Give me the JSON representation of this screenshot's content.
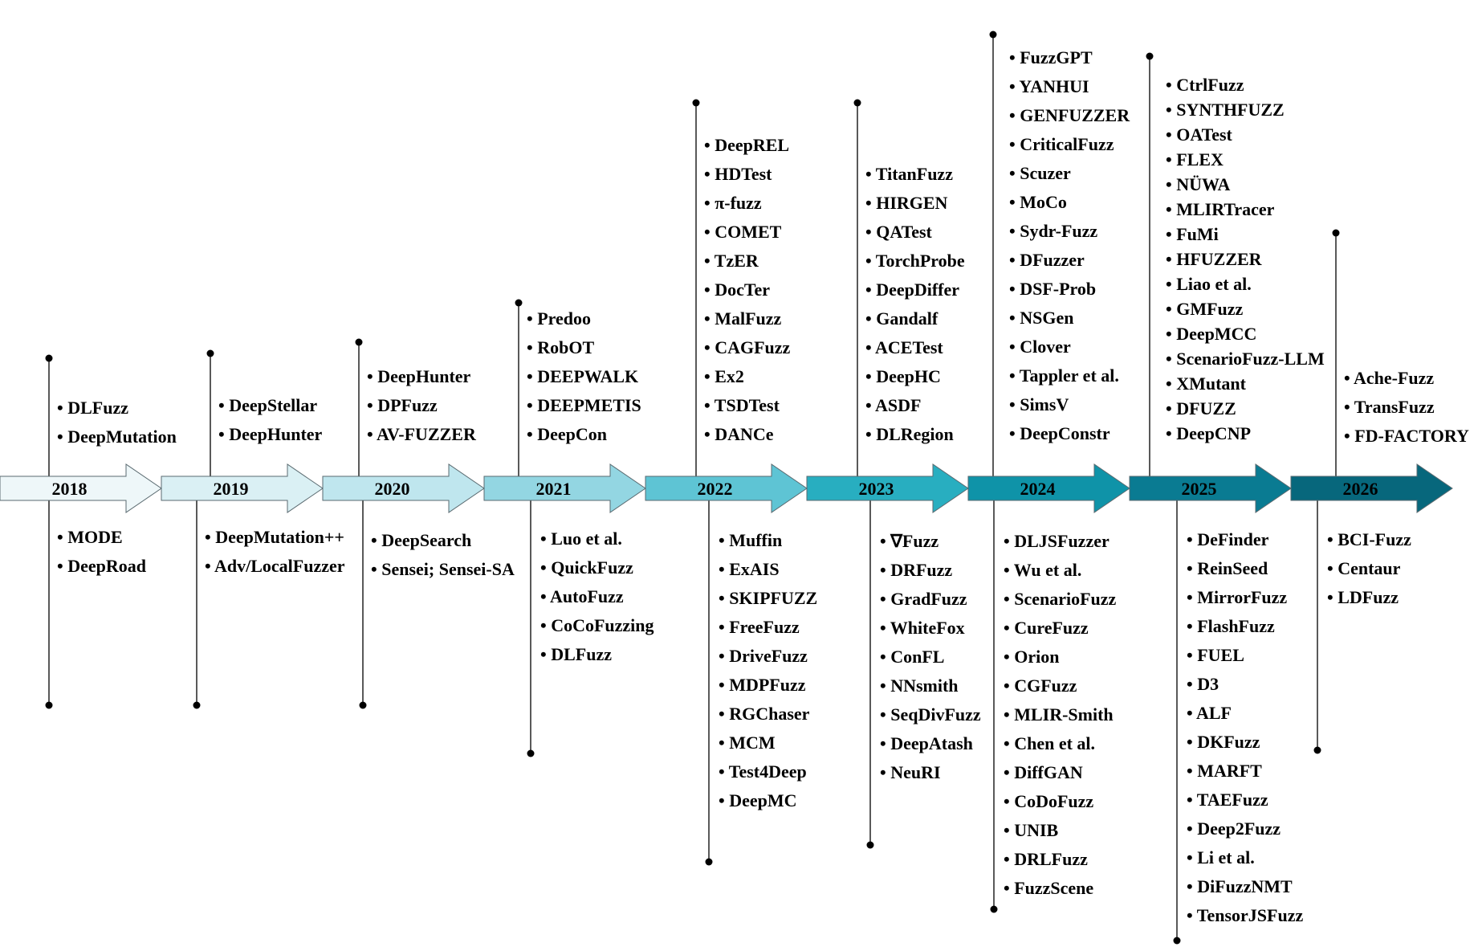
{
  "years": [
    {
      "year": "2018",
      "color": "#eef7f9",
      "top": [
        "DLFuzz",
        "DeepMutation"
      ],
      "bottom": [
        "MODE",
        "DeepRoad"
      ]
    },
    {
      "year": "2019",
      "color": "#daf0f4",
      "top": [
        "DeepStellar",
        "DeepHunter"
      ],
      "bottom": [
        "DeepMutation++",
        "Adv/LocalFuzzer"
      ]
    },
    {
      "year": "2020",
      "color": "#bfe6ee",
      "top": [
        "DeepHunter",
        "DPFuzz",
        "AV-FUZZER"
      ],
      "bottom": [
        "DeepSearch",
        "Sensei; Sensei-SA"
      ]
    },
    {
      "year": "2021",
      "color": "#93d6e2",
      "top": [
        "Predoo",
        "RobOT",
        "DEEPWALK",
        "DEEPMETIS",
        "DeepCon"
      ],
      "bottom": [
        "Luo et al.",
        "QuickFuzz",
        "AutoFuzz",
        "CoCoFuzzing",
        "DLFuzz"
      ]
    },
    {
      "year": "2022",
      "color": "#5ec4d4",
      "top": [
        "DeepREL",
        "HDTest",
        "π-fuzz",
        "COMET",
        "TzER",
        "DocTer",
        "MalFuzz",
        "CAGFuzz",
        "Ex2",
        "TSDTest",
        "DANCe"
      ],
      "bottom": [
        "Muffin",
        "ExAIS",
        "SKIPFUZZ",
        "FreeFuzz",
        "DriveFuzz",
        "MDPFuzz",
        "RGChaser",
        "MCM",
        "Test4Deep",
        "DeepMC"
      ]
    },
    {
      "year": "2023",
      "color": "#28aec0",
      "top": [
        "TitanFuzz",
        "HIRGEN",
        "QATest",
        "TorchProbe",
        "DeepDiffer",
        "Gandalf",
        "ACETest",
        "DeepHC",
        "ASDF",
        "DLRegion"
      ],
      "bottom": [
        "∇Fuzz",
        "DRFuzz",
        "GradFuzz",
        "WhiteFox",
        "ConFL",
        "NNsmith",
        "SeqDivFuzz",
        "DeepAtash",
        "NeuRI"
      ]
    },
    {
      "year": "2024",
      "color": "#0f93a8",
      "top": [
        "FuzzGPT",
        "YANHUI",
        "GENFUZZER",
        "CriticalFuzz",
        "Scuzer",
        "MoCo",
        "Sydr-Fuzz",
        "DFuzzer",
        "DSF-Prob",
        "NSGen",
        "Clover",
        "Tappler et al.",
        "SimsV",
        "DeepConstr"
      ],
      "bottom": [
        "DLJSFuzzer",
        "Wu et al.",
        "ScenarioFuzz",
        "CureFuzz",
        "Orion",
        "CGFuzz",
        "MLIR-Smith",
        "Chen et al.",
        "DiffGAN",
        "CoDoFuzz",
        "UNIB",
        "DRLFuzz",
        "FuzzScene"
      ]
    },
    {
      "year": "2025",
      "color": "#0a7b92",
      "top": [
        "CtrlFuzz",
        "SYNTHFUZZ",
        "OATest",
        "FLEX",
        "NÜWA",
        "MLIRTracer",
        "FuMi",
        "HFUZZER",
        "Liao et al.",
        "GMFuzz",
        "DeepMCC",
        "ScenarioFuzz-LLM",
        "XMutant",
        "DFUZZ",
        "DeepCNP"
      ],
      "bottom": [
        "DeFinder",
        "ReinSeed",
        "MirrorFuzz",
        "FlashFuzz",
        "FUEL",
        "D3",
        "ALF",
        "DKFuzz",
        "MARFT",
        "TAEFuzz",
        "Deep2Fuzz",
        "Li et al.",
        "DiFuzzNMT",
        "TensorJSFuzz"
      ]
    },
    {
      "year": "2026",
      "color": "#07677c",
      "top": [
        "Ache-Fuzz",
        "TransFuzz",
        "FD-FACTORY"
      ],
      "bottom": [
        "BCI-Fuzz",
        "Centaur",
        "LDFuzz"
      ]
    }
  ],
  "colors": {
    "line": "#000000",
    "arrow_stroke": "#5a6a70"
  }
}
